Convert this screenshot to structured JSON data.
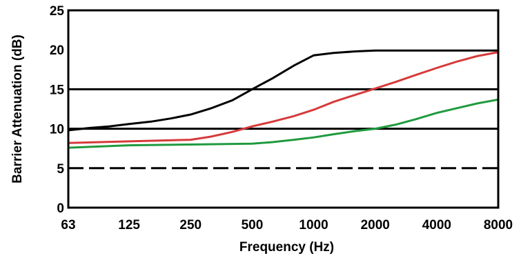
{
  "chart_data": {
    "type": "line",
    "title": "",
    "xlabel": "Frequency (Hz)",
    "ylabel": "Barrier Attenuation (dB)",
    "x_scale": "log",
    "categories": [
      "63",
      "125",
      "250",
      "500",
      "1000",
      "2000",
      "4000",
      "8000"
    ],
    "x_ticks": [
      63,
      125,
      250,
      500,
      1000,
      2000,
      4000,
      8000
    ],
    "y_ticks": [
      "0",
      "5",
      "10",
      "15",
      "20",
      "25"
    ],
    "ylim": [
      0,
      25
    ],
    "grid": {
      "solid": [
        10,
        15
      ],
      "dashed": [
        5
      ]
    },
    "series": [
      {
        "color": "#000000",
        "points": [
          [
            63,
            9.8
          ],
          [
            80,
            10.1
          ],
          [
            100,
            10.3
          ],
          [
            125,
            10.6
          ],
          [
            160,
            10.9
          ],
          [
            200,
            11.3
          ],
          [
            250,
            11.8
          ],
          [
            315,
            12.6
          ],
          [
            400,
            13.6
          ],
          [
            500,
            15.0
          ],
          [
            630,
            16.4
          ],
          [
            800,
            18.0
          ],
          [
            1000,
            19.3
          ],
          [
            1250,
            19.6
          ],
          [
            1600,
            19.8
          ],
          [
            2000,
            19.9
          ],
          [
            4000,
            19.9
          ],
          [
            8000,
            19.9
          ]
        ]
      },
      {
        "color": "#d63a3a",
        "points": [
          [
            63,
            8.2
          ],
          [
            125,
            8.4
          ],
          [
            250,
            8.6
          ],
          [
            315,
            9.0
          ],
          [
            400,
            9.6
          ],
          [
            500,
            10.3
          ],
          [
            630,
            10.9
          ],
          [
            800,
            11.6
          ],
          [
            1000,
            12.4
          ],
          [
            1250,
            13.4
          ],
          [
            1600,
            14.3
          ],
          [
            2000,
            15.1
          ],
          [
            2500,
            15.9
          ],
          [
            3150,
            16.8
          ],
          [
            4000,
            17.7
          ],
          [
            5000,
            18.5
          ],
          [
            6300,
            19.2
          ],
          [
            8000,
            19.7
          ]
        ]
      },
      {
        "color": "#1f9a3e",
        "points": [
          [
            63,
            7.6
          ],
          [
            125,
            7.9
          ],
          [
            250,
            8.0
          ],
          [
            500,
            8.1
          ],
          [
            630,
            8.3
          ],
          [
            800,
            8.6
          ],
          [
            1000,
            8.9
          ],
          [
            1250,
            9.3
          ],
          [
            1600,
            9.7
          ],
          [
            2000,
            10.0
          ],
          [
            2500,
            10.5
          ],
          [
            3150,
            11.2
          ],
          [
            4000,
            12.0
          ],
          [
            5000,
            12.6
          ],
          [
            6300,
            13.2
          ],
          [
            8000,
            13.7
          ]
        ]
      }
    ]
  }
}
